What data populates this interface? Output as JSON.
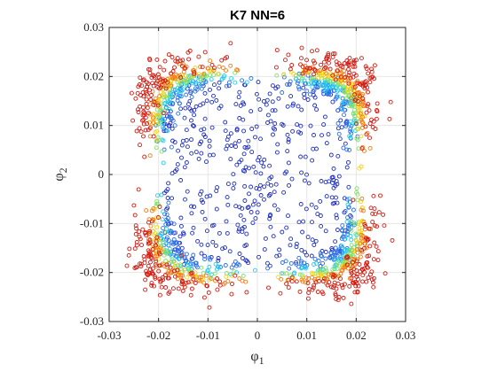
{
  "chart_data": {
    "type": "scatter",
    "title": "K7 NN=6",
    "xlabel": {
      "symbol": "φ",
      "subscript": "1"
    },
    "ylabel": {
      "symbol": "φ",
      "subscript": "2"
    },
    "xlim": [
      -0.03,
      0.03
    ],
    "ylim": [
      -0.03,
      0.03
    ],
    "x_ticks": [
      -0.03,
      -0.02,
      -0.01,
      0,
      0.01,
      0.02,
      0.03
    ],
    "y_ticks": [
      -0.03,
      -0.02,
      -0.01,
      0,
      0.01,
      0.02,
      0.03
    ],
    "x_tick_labels": [
      "-0.03",
      "-0.02",
      "-0.01",
      "0",
      "0.01",
      "0.02",
      "0.03"
    ],
    "y_tick_labels": [
      "-0.03",
      "-0.02",
      "-0.01",
      "0",
      "0.01",
      "0.02",
      "0.03"
    ],
    "grid": true,
    "marker": "open-circle",
    "colormap": [
      "#00008f",
      "#0060ff",
      "#00e0ff",
      "#80ff80",
      "#ffe000",
      "#ff6000",
      "#d00000"
    ],
    "layers": [
      {
        "color": "#1f2fbf",
        "shape": "filled-square",
        "x_range": [
          -0.019,
          0.019
        ],
        "y_range": [
          -0.019,
          0.019
        ],
        "points": 420
      },
      {
        "color": "#2a6fe8",
        "shape": "squircle-ring",
        "radius": 0.0185,
        "spread": 0.0008,
        "points": 260
      },
      {
        "color": "#22ccee",
        "shape": "squircle-ring",
        "radius": 0.0195,
        "spread": 0.0006,
        "points": 200
      },
      {
        "color": "#7fe06a",
        "shape": "squircle-ring",
        "radius": 0.0203,
        "spread": 0.0004,
        "points": 200
      },
      {
        "color": "#f5d21c",
        "shape": "squircle-ring",
        "radius": 0.021,
        "spread": 0.0004,
        "points": 200
      },
      {
        "color": "#f47a14",
        "shape": "squircle-ring",
        "radius": 0.0217,
        "spread": 0.0005,
        "points": 220
      },
      {
        "color": "#d41a10",
        "shape": "squircle-ring",
        "radius": 0.0235,
        "spread": 0.0015,
        "points": 480
      }
    ]
  }
}
